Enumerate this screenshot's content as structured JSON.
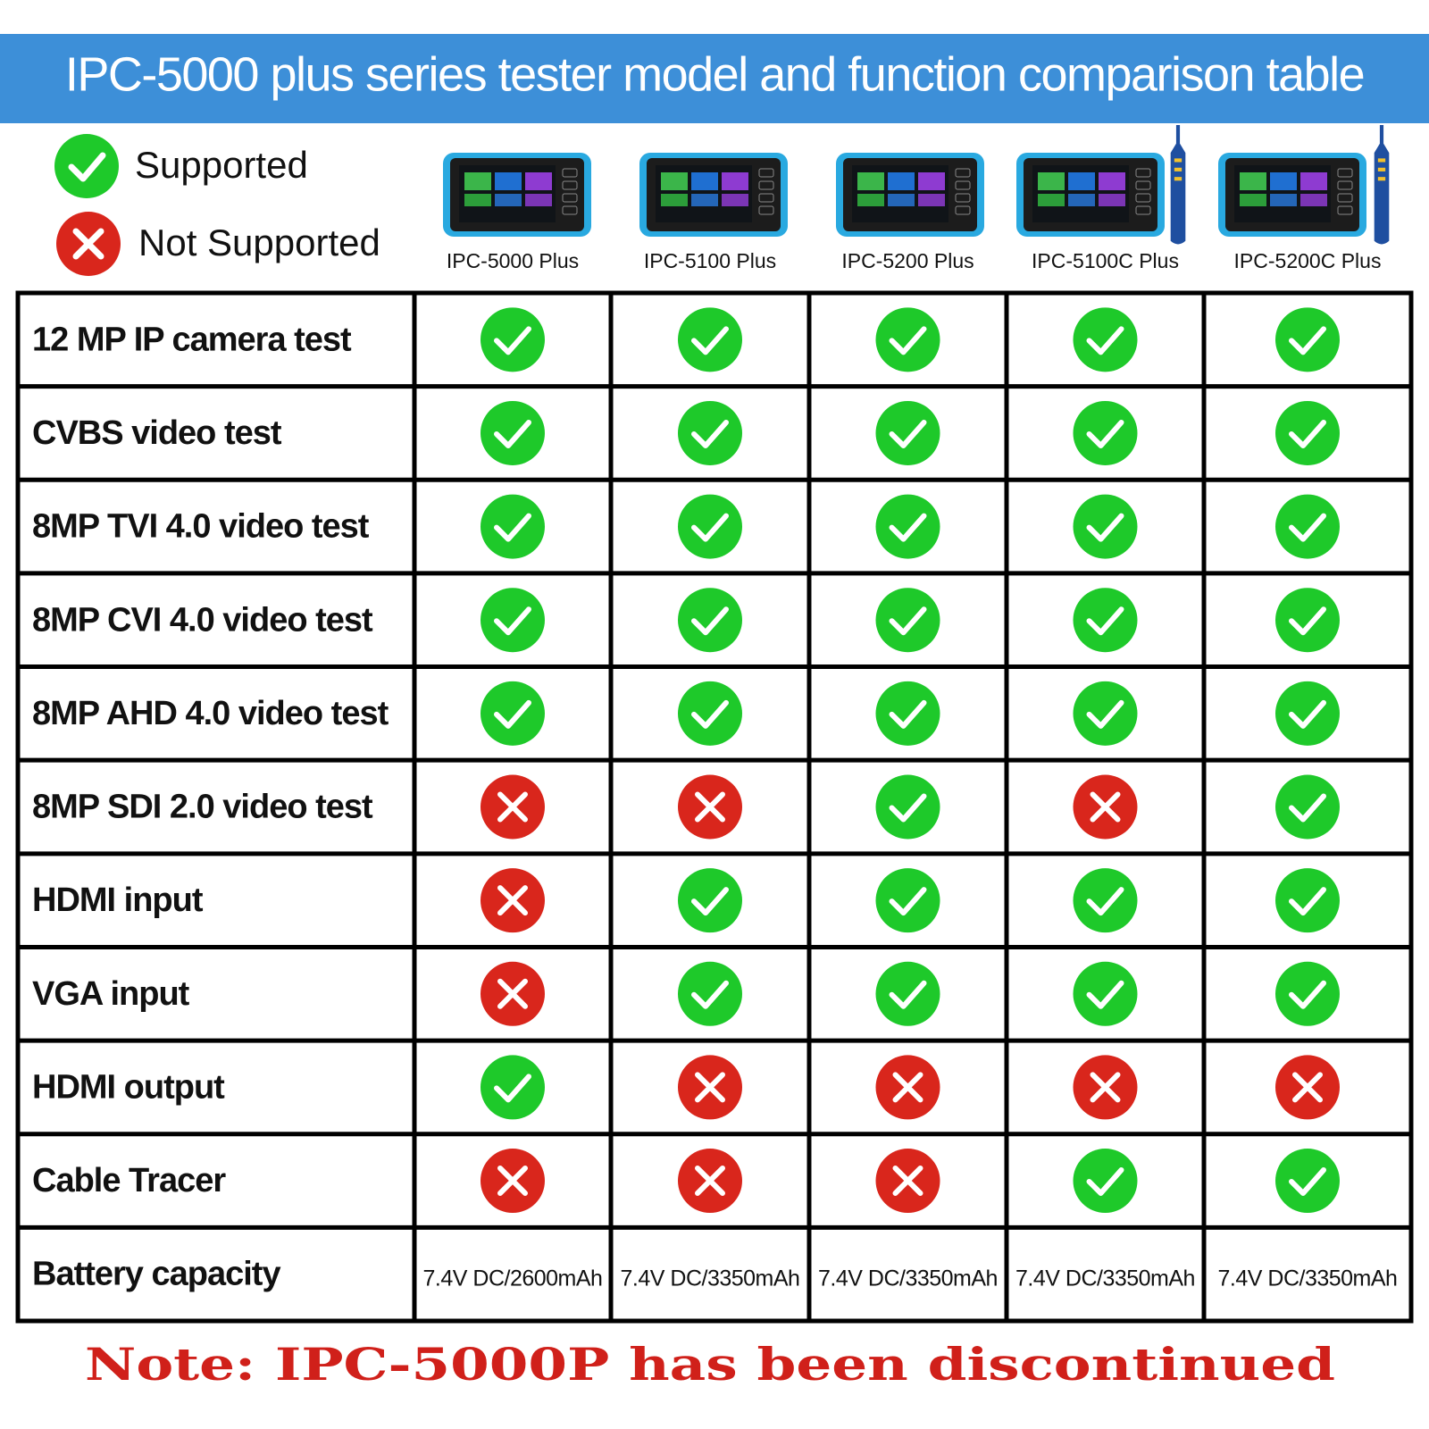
{
  "header": {
    "title": "IPC-5000 plus series tester model and function comparison table"
  },
  "legend": {
    "supported": "Supported",
    "not_supported": "Not Supported"
  },
  "models": [
    "IPC-5000 Plus",
    "IPC-5100 Plus",
    "IPC-5200 Plus",
    "IPC-5100C Plus",
    "IPC-5200C Plus"
  ],
  "rows": [
    {
      "feature": "12 MP IP camera test",
      "values": [
        true,
        true,
        true,
        true,
        true
      ]
    },
    {
      "feature": "CVBS video test",
      "values": [
        true,
        true,
        true,
        true,
        true
      ]
    },
    {
      "feature": "8MP TVI 4.0 video test",
      "values": [
        true,
        true,
        true,
        true,
        true
      ]
    },
    {
      "feature": "8MP CVI 4.0 video test",
      "values": [
        true,
        true,
        true,
        true,
        true
      ]
    },
    {
      "feature": "8MP AHD 4.0 video test",
      "values": [
        true,
        true,
        true,
        true,
        true
      ]
    },
    {
      "feature": "8MP SDI 2.0 video test",
      "values": [
        false,
        false,
        true,
        false,
        true
      ]
    },
    {
      "feature": "HDMI input",
      "values": [
        false,
        true,
        true,
        true,
        true
      ]
    },
    {
      "feature": "VGA input",
      "values": [
        false,
        true,
        true,
        true,
        true
      ]
    },
    {
      "feature": "HDMI output",
      "values": [
        true,
        false,
        false,
        false,
        false
      ]
    },
    {
      "feature": "Cable Tracer",
      "values": [
        false,
        false,
        false,
        true,
        true
      ]
    },
    {
      "feature": "Battery capacity",
      "values": [
        "7.4V DC/2600mAh",
        "7.4V DC/3350mAh",
        "7.4V DC/3350mAh",
        "7.4V DC/3350mAh",
        "7.4V DC/3350mAh"
      ]
    }
  ],
  "note": "Note: IPC-5000P has been discontinued"
}
